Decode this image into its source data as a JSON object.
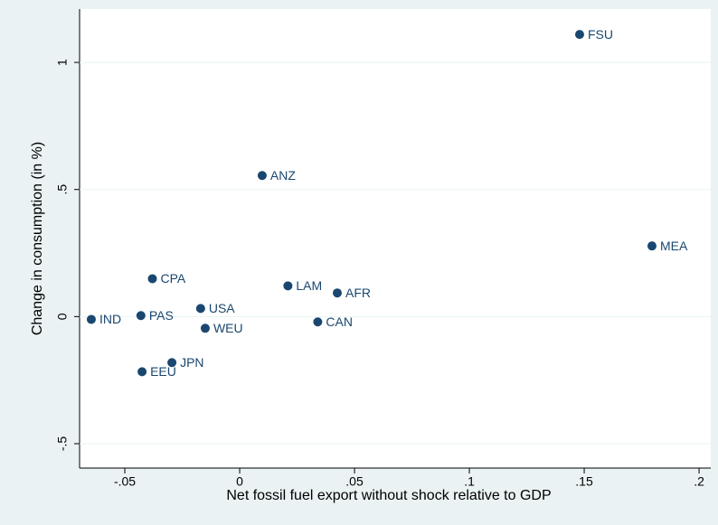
{
  "chart_data": {
    "type": "scatter",
    "x_label": "Net fossil fuel export without shock relative to GDP",
    "y_label": "Change in consumption (in %)",
    "labels": [
      "FSU",
      "MEA",
      "ANZ",
      "CPA",
      "LAM",
      "AFR",
      "USA",
      "PAS",
      "IND",
      "WEU",
      "CAN",
      "JPN",
      "EEU"
    ],
    "x": [
      0.148,
      0.1795,
      0.0098,
      -0.038,
      0.021,
      0.0425,
      -0.017,
      -0.043,
      -0.0646,
      -0.015,
      0.034,
      -0.0295,
      -0.0425
    ],
    "values": [
      1.11,
      0.278,
      0.555,
      0.149,
      0.121,
      0.093,
      0.032,
      0.004,
      -0.011,
      -0.046,
      -0.021,
      -0.181,
      -0.217
    ],
    "color": "#1a476f",
    "xlim": [
      -0.0697,
      0.2051
    ],
    "ylim": [
      -0.596,
      1.21
    ],
    "xticks": [
      {
        "value": -0.05,
        "label": "-.05"
      },
      0,
      {
        "value": 0.05,
        "label": ".05"
      },
      {
        "value": 0.1,
        "label": ".1"
      },
      {
        "value": 0.15,
        "label": ".15"
      },
      {
        "value": 0.2,
        "label": ".2"
      }
    ],
    "yticks": [
      {
        "value": -0.5,
        "label": "-.5"
      },
      0,
      {
        "value": 0.5,
        "label": ".5"
      },
      1
    ],
    "grid": true
  }
}
